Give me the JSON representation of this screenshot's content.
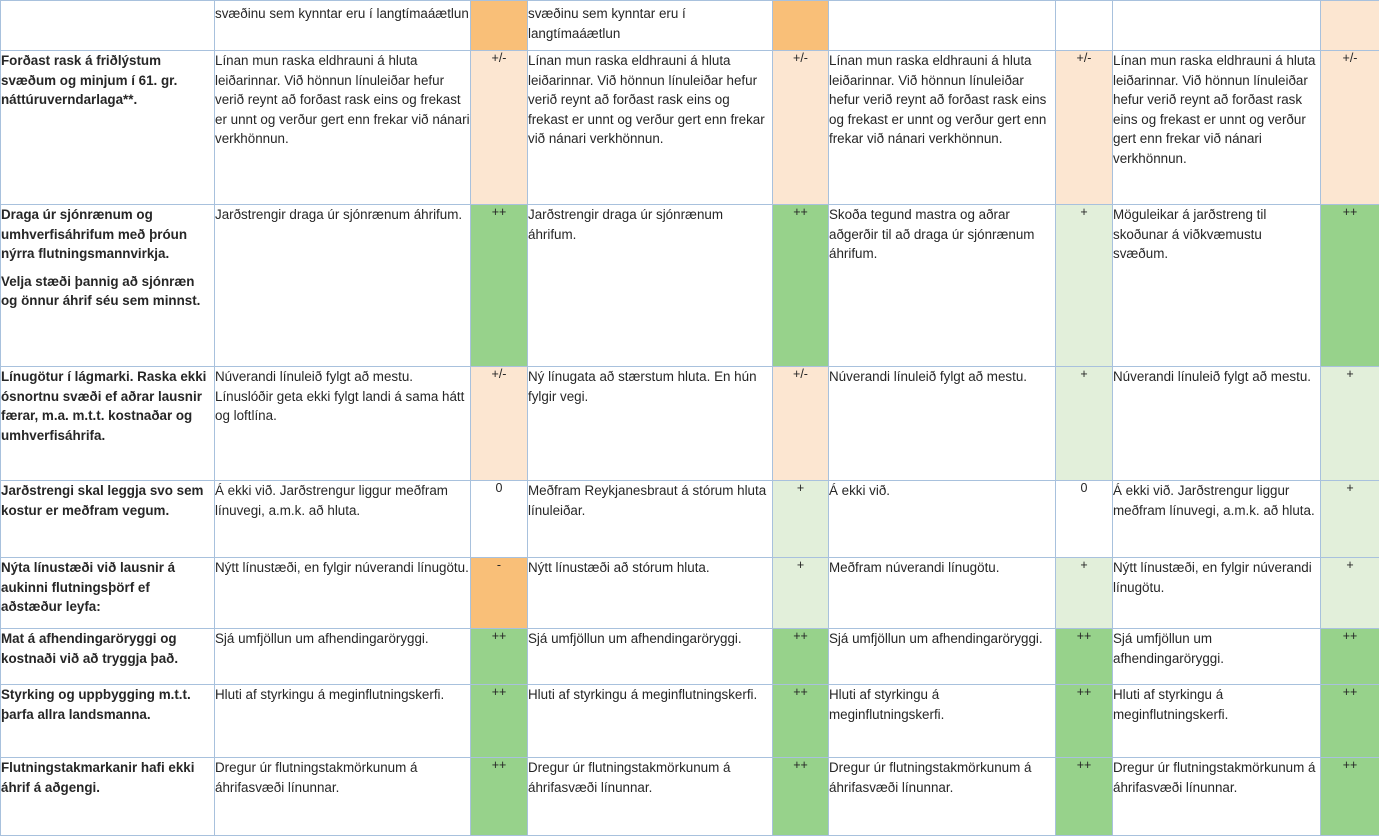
{
  "colors": {
    "strong_negative": "#f9bf78",
    "neutral_mixed": "#fce6d1",
    "strong_positive": "#97d28b",
    "positive": "#e2efda",
    "none": "#ffffff",
    "grid": "#a8c1dd"
  },
  "rows": [
    {
      "criterion": [],
      "cells": [
        {
          "text": "svæðinu sem kynntar eru í langtímaáætlun",
          "score": "",
          "color": "orange"
        },
        {
          "text": "svæðinu sem kynntar eru í langtímaáætlun",
          "score": "",
          "color": "orange"
        },
        {
          "text": "",
          "score": "",
          "color": "white"
        },
        {
          "text": "",
          "score": "",
          "color": "lorange"
        }
      ]
    },
    {
      "criterion": [
        "Forðast rask á friðlýstum svæðum og minjum í 61. gr. náttúruverndarlaga**."
      ],
      "cells": [
        {
          "text": "Línan mun raska eldhrauni á hluta leiðarinnar. Við hönnun línuleiðar hefur verið reynt að forðast rask eins og frekast er unnt og verður gert enn frekar við nánari verkhönnun.",
          "score": "+/-",
          "color": "lorange"
        },
        {
          "text": "Línan mun raska eldhrauni á hluta leiðarinnar. Við hönnun línuleiðar hefur verið reynt að forðast rask eins og frekast er unnt og verður gert enn frekar við nánari verkhönnun.",
          "score": "+/-",
          "color": "lorange"
        },
        {
          "text": "Línan mun raska eldhrauni á hluta leiðarinnar. Við hönnun línuleiðar hefur verið reynt að forðast rask eins og frekast er unnt og verður gert enn frekar við nánari verkhönnun.",
          "score": "+/-",
          "color": "lorange"
        },
        {
          "text": "Línan mun raska eldhrauni á hluta leiðarinnar. Við hönnun línuleiðar hefur verið reynt að forðast rask eins og frekast er unnt og verður gert enn frekar við nánari verkhönnun.",
          "score": "+/-",
          "color": "lorange"
        }
      ]
    },
    {
      "criterion": [
        "Draga úr sjónrænum og umhverfisáhrifum með þróun nýrra flutningsmannvirkja.",
        "Velja stæði þannig að sjónræn og önnur áhrif séu sem minnst."
      ],
      "cells": [
        {
          "text": "Jarðstrengir draga úr sjónrænum áhrifum.",
          "score": "++",
          "color": "green"
        },
        {
          "text": "Jarðstrengir draga úr sjónrænum áhrifum.",
          "score": "++",
          "color": "green"
        },
        {
          "text": "Skoða tegund mastra og aðrar aðgerðir til að draga úr sjónrænum áhrifum.",
          "score": "+",
          "color": "lgreen"
        },
        {
          "text": "Möguleikar á jarðstreng til skoðunar á viðkvæmustu svæðum.",
          "score": "++",
          "color": "green"
        }
      ]
    },
    {
      "criterion": [
        "Línugötur í lágmarki. Raska ekki ósnortnu svæði ef aðrar lausnir færar, m.a. m.t.t. kostnaðar og umhverfisáhrifa."
      ],
      "cells": [
        {
          "text": "Núverandi línuleið fylgt að mestu. Línuslóðir geta ekki fylgt landi á sama hátt og loftlína.",
          "score": "+/-",
          "color": "lorange"
        },
        {
          "text": "Ný línugata að stærstum hluta. En hún fylgir vegi.",
          "score": "+/-",
          "color": "lorange"
        },
        {
          "text": "Núverandi línuleið fylgt að mestu.",
          "score": "+",
          "color": "lgreen"
        },
        {
          "text": "Núverandi línuleið fylgt að mestu.",
          "score": "+",
          "color": "lgreen"
        }
      ]
    },
    {
      "criterion": [
        "Jarðstrengi skal leggja svo sem kostur er meðfram vegum."
      ],
      "cells": [
        {
          "text": "Á ekki við. Jarðstrengur liggur meðfram línuvegi, a.m.k. að hluta.",
          "score": "0",
          "color": "white"
        },
        {
          "text": "Meðfram Reykjanesbraut á stórum hluta línuleiðar.",
          "score": "+",
          "color": "lgreen"
        },
        {
          "text": "Á ekki við.",
          "score": "0",
          "color": "white"
        },
        {
          "text": "Á ekki við. Jarðstrengur liggur meðfram línuvegi, a.m.k. að hluta.",
          "score": "+",
          "color": "lgreen"
        }
      ]
    },
    {
      "criterion": [
        "Nýta línustæði við lausnir á aukinni flutningsþörf ef aðstæður leyfa:"
      ],
      "cells": [
        {
          "text": "Nýtt línustæði, en fylgir núverandi línugötu.",
          "score": "-",
          "color": "orange"
        },
        {
          "text": "Nýtt línustæði að stórum hluta.",
          "score": "+",
          "color": "lgreen"
        },
        {
          "text": "Meðfram núverandi línugötu.",
          "score": "+",
          "color": "lgreen"
        },
        {
          "text": "Nýtt línustæði, en fylgir núverandi línugötu.",
          "score": "+",
          "color": "lgreen"
        }
      ]
    },
    {
      "criterion": [
        "Mat á afhendingaröryggi og kostnaði við að tryggja það."
      ],
      "cells": [
        {
          "text": "Sjá umfjöllun um afhendingaröryggi.",
          "score": "++",
          "color": "green"
        },
        {
          "text": "Sjá umfjöllun um afhendingaröryggi.",
          "score": "++",
          "color": "green"
        },
        {
          "text": "Sjá umfjöllun um afhendingaröryggi.",
          "score": "++",
          "color": "green"
        },
        {
          "text": "Sjá umfjöllun um afhendingaröryggi.",
          "score": "++",
          "color": "green"
        }
      ]
    },
    {
      "criterion": [
        "Styrking og uppbygging m.t.t. þarfa allra landsmanna."
      ],
      "cells": [
        {
          "text": "Hluti af styrkingu á meginflutningskerfi.",
          "score": "++",
          "color": "green"
        },
        {
          "text": "Hluti af styrkingu á meginflutningskerfi.",
          "score": "++",
          "color": "green"
        },
        {
          "text": "Hluti af styrkingu á meginflutningskerfi.",
          "score": "++",
          "color": "green"
        },
        {
          "text": "Hluti af styrkingu á meginflutningskerfi.",
          "score": "++",
          "color": "green"
        }
      ]
    },
    {
      "criterion": [
        "Flutningstakmarkanir hafi ekki áhrif á aðgengi."
      ],
      "cells": [
        {
          "text": "Dregur úr flutningstakmörkunum á áhrifasvæði línunnar.",
          "score": "++",
          "color": "green"
        },
        {
          "text": "Dregur úr flutningstakmörkunum á áhrifasvæði línunnar.",
          "score": "++",
          "color": "green"
        },
        {
          "text": "Dregur úr flutningstakmörkunum á áhrifasvæði línunnar.",
          "score": "++",
          "color": "green"
        },
        {
          "text": "Dregur úr flutningstakmörkunum á áhrifasvæði línunnar.",
          "score": "++",
          "color": "green"
        }
      ]
    }
  ]
}
